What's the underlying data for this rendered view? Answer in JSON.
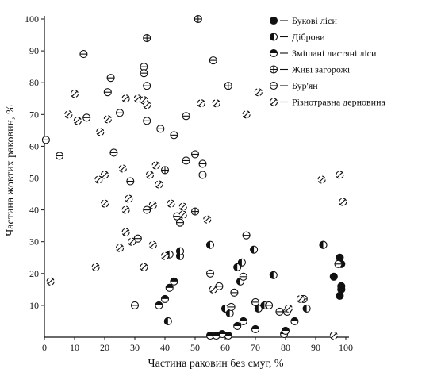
{
  "chart_data": {
    "type": "scatter",
    "xlabel": "Частина раковин без смуг, %",
    "ylabel": "Частина жовтих раковин, %",
    "xlim": [
      0,
      100
    ],
    "ylim": [
      0,
      100
    ],
    "x_ticks": [
      0,
      10,
      20,
      30,
      40,
      50,
      60,
      70,
      80,
      90,
      100
    ],
    "y_ticks": [
      10,
      20,
      30,
      40,
      50,
      60,
      70,
      80,
      90,
      100
    ],
    "grid": false,
    "legend_position": "top-right",
    "series": [
      {
        "name": "Букові ліси",
        "marker": "filled",
        "points": [
          [
            92.5,
            29
          ],
          [
            98,
            25
          ],
          [
            98.5,
            23
          ],
          [
            96,
            19
          ],
          [
            98.5,
            16
          ],
          [
            98.5,
            15
          ],
          [
            98,
            13
          ]
        ]
      },
      {
        "name": "Діброви",
        "marker": "half-left",
        "points": [
          [
            41.5,
            26
          ],
          [
            45,
            25.5
          ],
          [
            45,
            27
          ],
          [
            55,
            29
          ],
          [
            64,
            22
          ],
          [
            65.5,
            23.5
          ],
          [
            69.5,
            27.5
          ],
          [
            60,
            9
          ],
          [
            61.5,
            7.5
          ],
          [
            65,
            17.5
          ],
          [
            71,
            9
          ],
          [
            73,
            10
          ],
          [
            76,
            19.5
          ],
          [
            87,
            9
          ],
          [
            92.5,
            29
          ],
          [
            41,
            5
          ]
        ]
      },
      {
        "name": "Змішані листяні ліси",
        "marker": "half-top",
        "points": [
          [
            38,
            10
          ],
          [
            41.5,
            15.5
          ],
          [
            43,
            17.5
          ],
          [
            40,
            12
          ],
          [
            55,
            0.5
          ],
          [
            61,
            0.5
          ],
          [
            59,
            1
          ],
          [
            64,
            3.5
          ],
          [
            66,
            5
          ],
          [
            70,
            2.5
          ],
          [
            79.5,
            1
          ],
          [
            80,
            2
          ],
          [
            83,
            5
          ],
          [
            57,
            0.5
          ]
        ]
      },
      {
        "name": "Живі загорожі",
        "marker": "cross",
        "points": [
          [
            51,
            100
          ],
          [
            34,
            94
          ],
          [
            61,
            79
          ],
          [
            40,
            52.5
          ],
          [
            50,
            39.5
          ]
        ]
      },
      {
        "name": "Бур'ян",
        "marker": "dash",
        "points": [
          [
            0.5,
            62
          ],
          [
            5,
            57
          ],
          [
            13,
            89
          ],
          [
            14,
            69
          ],
          [
            21,
            77
          ],
          [
            22,
            81.5
          ],
          [
            23,
            58
          ],
          [
            25,
            70.5
          ],
          [
            28.5,
            49
          ],
          [
            31,
            31
          ],
          [
            33,
            85
          ],
          [
            33,
            83
          ],
          [
            34,
            79
          ],
          [
            34,
            68
          ],
          [
            34,
            40
          ],
          [
            38.5,
            65.5
          ],
          [
            43,
            63.5
          ],
          [
            44,
            38
          ],
          [
            45,
            36
          ],
          [
            47,
            55.5
          ],
          [
            47,
            69.5
          ],
          [
            50,
            57.5
          ],
          [
            52.5,
            51
          ],
          [
            52.5,
            54.5
          ],
          [
            56,
            87
          ],
          [
            58,
            16
          ],
          [
            62,
            9.5
          ],
          [
            63,
            14
          ],
          [
            55,
            20
          ],
          [
            66,
            19
          ],
          [
            67,
            32
          ],
          [
            70,
            11
          ],
          [
            74.5,
            10
          ],
          [
            78,
            8
          ],
          [
            80.5,
            8
          ],
          [
            86,
            12
          ],
          [
            97.5,
            23
          ],
          [
            30,
            10
          ]
        ]
      },
      {
        "name": "Різнотравна дерновина",
        "marker": "diagonal",
        "points": [
          [
            2,
            17.5
          ],
          [
            8,
            70
          ],
          [
            10,
            76.5
          ],
          [
            11,
            68
          ],
          [
            17,
            22
          ],
          [
            18,
            49.5
          ],
          [
            18.5,
            64.5
          ],
          [
            20,
            51
          ],
          [
            20,
            42
          ],
          [
            21,
            68.5
          ],
          [
            25,
            28
          ],
          [
            26,
            53
          ],
          [
            27,
            75
          ],
          [
            27,
            40
          ],
          [
            27,
            33
          ],
          [
            28,
            43.5
          ],
          [
            29,
            30
          ],
          [
            31,
            75
          ],
          [
            33,
            74.5
          ],
          [
            34,
            73
          ],
          [
            35,
            51
          ],
          [
            36,
            41.5
          ],
          [
            37,
            54
          ],
          [
            38,
            48
          ],
          [
            42,
            42
          ],
          [
            46,
            41
          ],
          [
            46,
            38.5
          ],
          [
            52,
            73.5
          ],
          [
            57,
            73.5
          ],
          [
            67,
            70
          ],
          [
            71,
            77
          ],
          [
            92,
            49.5
          ],
          [
            98,
            51
          ],
          [
            99,
            42.5
          ],
          [
            40,
            25.5
          ],
          [
            54,
            37
          ],
          [
            56,
            15
          ],
          [
            36,
            29
          ],
          [
            96,
            0.5
          ],
          [
            85,
            12
          ],
          [
            81,
            9
          ],
          [
            33,
            22
          ]
        ]
      }
    ]
  }
}
